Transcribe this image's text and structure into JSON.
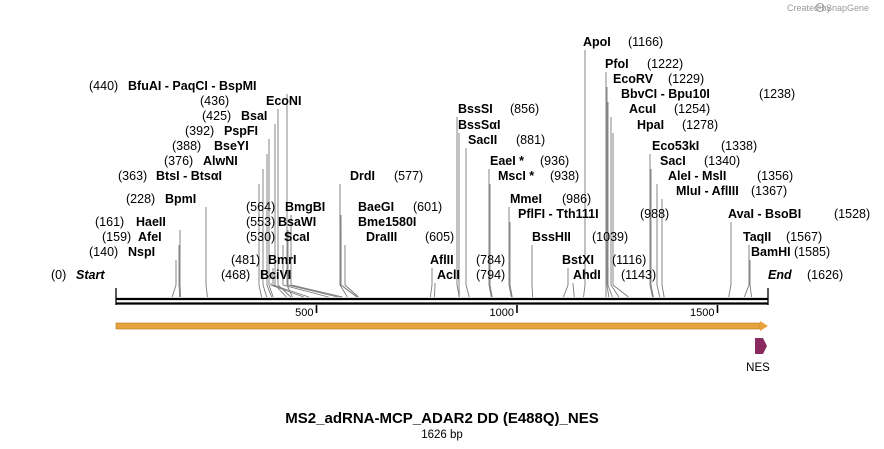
{
  "credit": "Created by",
  "credit_app": "SnapGene",
  "title": "MS2_adRNA-MCP_ADAR2 DD (E488Q)_NES",
  "subtitle": "1626 bp",
  "total_bp": 1626,
  "ends": {
    "start_label": "Start",
    "start_pos": "(0)",
    "end_label": "End",
    "end_pos": "(1626)"
  },
  "ticks": [
    "500",
    "1000",
    "1500"
  ],
  "feature": {
    "name": "NES",
    "color": "#8b2a5f"
  },
  "backbone_color": "#e8a33d",
  "sites": [
    {
      "name": "NspI",
      "pos": "(140)",
      "bp": 140,
      "side": "left"
    },
    {
      "name": "AfeI",
      "pos": "(159)",
      "bp": 159,
      "side": "left"
    },
    {
      "name": "HaeII",
      "pos": "(161)",
      "bp": 161,
      "side": "left"
    },
    {
      "name": "BpmI",
      "pos": "(228)",
      "bp": 228,
      "side": "left"
    },
    {
      "name": "BtsI  -  BtsαI",
      "pos": "(363)",
      "bp": 363,
      "side": "left"
    },
    {
      "name": "AlwNI",
      "pos": "(376)",
      "bp": 376,
      "side": "left"
    },
    {
      "name": "BseYI",
      "pos": "(388)",
      "bp": 388,
      "side": "left"
    },
    {
      "name": "PspFI",
      "pos": "(392)",
      "bp": 392,
      "side": "left"
    },
    {
      "name": "BsaI",
      "pos": "(425)",
      "bp": 425,
      "side": "left"
    },
    {
      "name": "EcoNI",
      "pos": "(436)",
      "bp": 436,
      "side": "left"
    },
    {
      "name": "BfuAI  -  PaqCI  -  BspMI",
      "pos": "(440)",
      "bp": 440,
      "side": "left"
    },
    {
      "name": "BciVI",
      "pos": "(468)",
      "bp": 468,
      "side": "left"
    },
    {
      "name": "BmrI",
      "pos": "(481)",
      "bp": 481,
      "side": "left"
    },
    {
      "name": "ScaI",
      "pos": "(530)",
      "bp": 530,
      "side": "left"
    },
    {
      "name": "BsaWI",
      "pos": "(553)",
      "bp": 553,
      "side": "left"
    },
    {
      "name": "BmgBI",
      "pos": "(564)",
      "bp": 564,
      "side": "left"
    },
    {
      "name": "DrdI",
      "pos": "(577)",
      "bp": 577,
      "side": "right"
    },
    {
      "name": "BaeGI",
      "pos": "(601)",
      "bp": 601,
      "side": "right"
    },
    {
      "name": "Bme1580I",
      "pos": "",
      "bp": 601,
      "side": "right"
    },
    {
      "name": "DraIII",
      "pos": "(605)",
      "bp": 605,
      "side": "right"
    },
    {
      "name": "AflII",
      "pos": "(784)",
      "bp": 784,
      "side": "right"
    },
    {
      "name": "AclI",
      "pos": "(794)",
      "bp": 794,
      "side": "right"
    },
    {
      "name": "BssSI",
      "pos": "(856)",
      "bp": 856,
      "side": "right"
    },
    {
      "name": "BssSαI",
      "pos": "",
      "bp": 856,
      "side": "right"
    },
    {
      "name": "SacII",
      "pos": "(881)",
      "bp": 881,
      "side": "right"
    },
    {
      "name": "EaeI *",
      "pos": "(936)",
      "bp": 936,
      "side": "right"
    },
    {
      "name": "MscI *",
      "pos": "(938)",
      "bp": 938,
      "side": "right"
    },
    {
      "name": "MmeI",
      "pos": "(986)",
      "bp": 986,
      "side": "right"
    },
    {
      "name": "PflFI  -  Tth111I",
      "pos": "(988)",
      "bp": 988,
      "side": "right"
    },
    {
      "name": "BssHII",
      "pos": "(1039)",
      "bp": 1039,
      "side": "right"
    },
    {
      "name": "BstXI",
      "pos": "(1116)",
      "bp": 1116,
      "side": "right"
    },
    {
      "name": "AhdI",
      "pos": "(1143)",
      "bp": 1143,
      "side": "right"
    },
    {
      "name": "ApoI",
      "pos": "(1166)",
      "bp": 1166,
      "side": "right"
    },
    {
      "name": "PfoI",
      "pos": "(1222)",
      "bp": 1222,
      "side": "right"
    },
    {
      "name": "EcoRV",
      "pos": "(1229)",
      "bp": 1229,
      "side": "right"
    },
    {
      "name": "BbvCI  -  Bpu10I",
      "pos": "(1238)",
      "bp": 1238,
      "side": "right"
    },
    {
      "name": "AcuI",
      "pos": "(1254)",
      "bp": 1254,
      "side": "right"
    },
    {
      "name": "HpaI",
      "pos": "(1278)",
      "bp": 1278,
      "side": "right"
    },
    {
      "name": "Eco53kI",
      "pos": "(1338)",
      "bp": 1338,
      "side": "right"
    },
    {
      "name": "SacI",
      "pos": "(1340)",
      "bp": 1340,
      "side": "right"
    },
    {
      "name": "AleI  -  MslI",
      "pos": "(1356)",
      "bp": 1356,
      "side": "right"
    },
    {
      "name": "MluI  -  AflIII",
      "pos": "(1367)",
      "bp": 1367,
      "side": "right"
    },
    {
      "name": "AvaI  -  BsoBI",
      "pos": "(1528)",
      "bp": 1528,
      "side": "right"
    },
    {
      "name": "TaqII",
      "pos": "(1567)",
      "bp": 1567,
      "side": "right"
    },
    {
      "name": "BamHI",
      "pos": "(1585)",
      "bp": 1585,
      "side": "right"
    }
  ]
}
